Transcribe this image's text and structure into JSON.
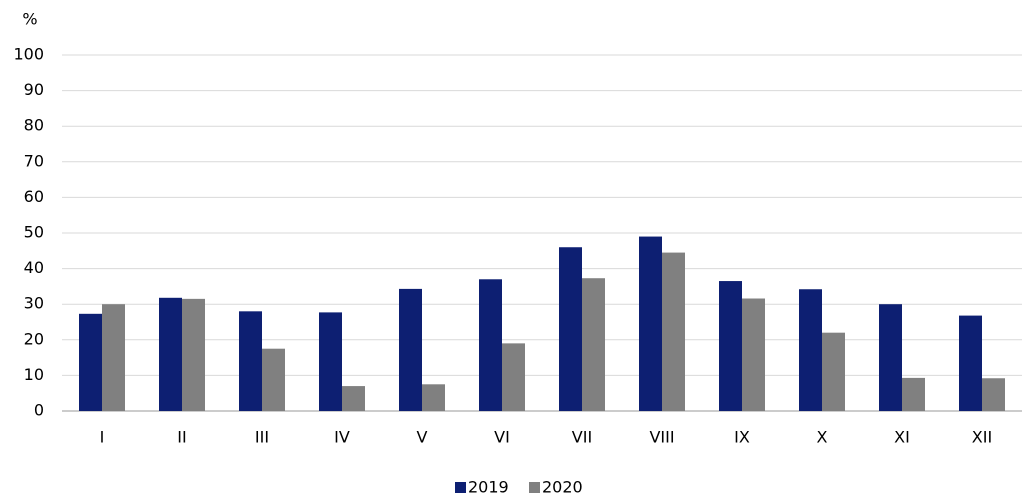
{
  "chart_data": {
    "type": "bar",
    "y_label": "%",
    "categories": [
      "I",
      "II",
      "III",
      "IV",
      "V",
      "VI",
      "VII",
      "VIII",
      "IX",
      "X",
      "XI",
      "XII"
    ],
    "series": [
      {
        "name": "2019",
        "color": "#0d1f72",
        "values": [
          27.3,
          31.8,
          28,
          27.7,
          34.3,
          37,
          46,
          49,
          36.5,
          34.2,
          30,
          26.8
        ]
      },
      {
        "name": "2020",
        "color": "#808080",
        "values": [
          30,
          31.5,
          17.5,
          7,
          7.5,
          19,
          37.3,
          44.5,
          31.6,
          22,
          9.3,
          9.2
        ]
      }
    ],
    "ylim": [
      0,
      100
    ],
    "yticks": [
      0,
      10,
      20,
      30,
      40,
      50,
      60,
      70,
      80,
      90,
      100
    ],
    "grid": true,
    "legend": "bottom"
  }
}
